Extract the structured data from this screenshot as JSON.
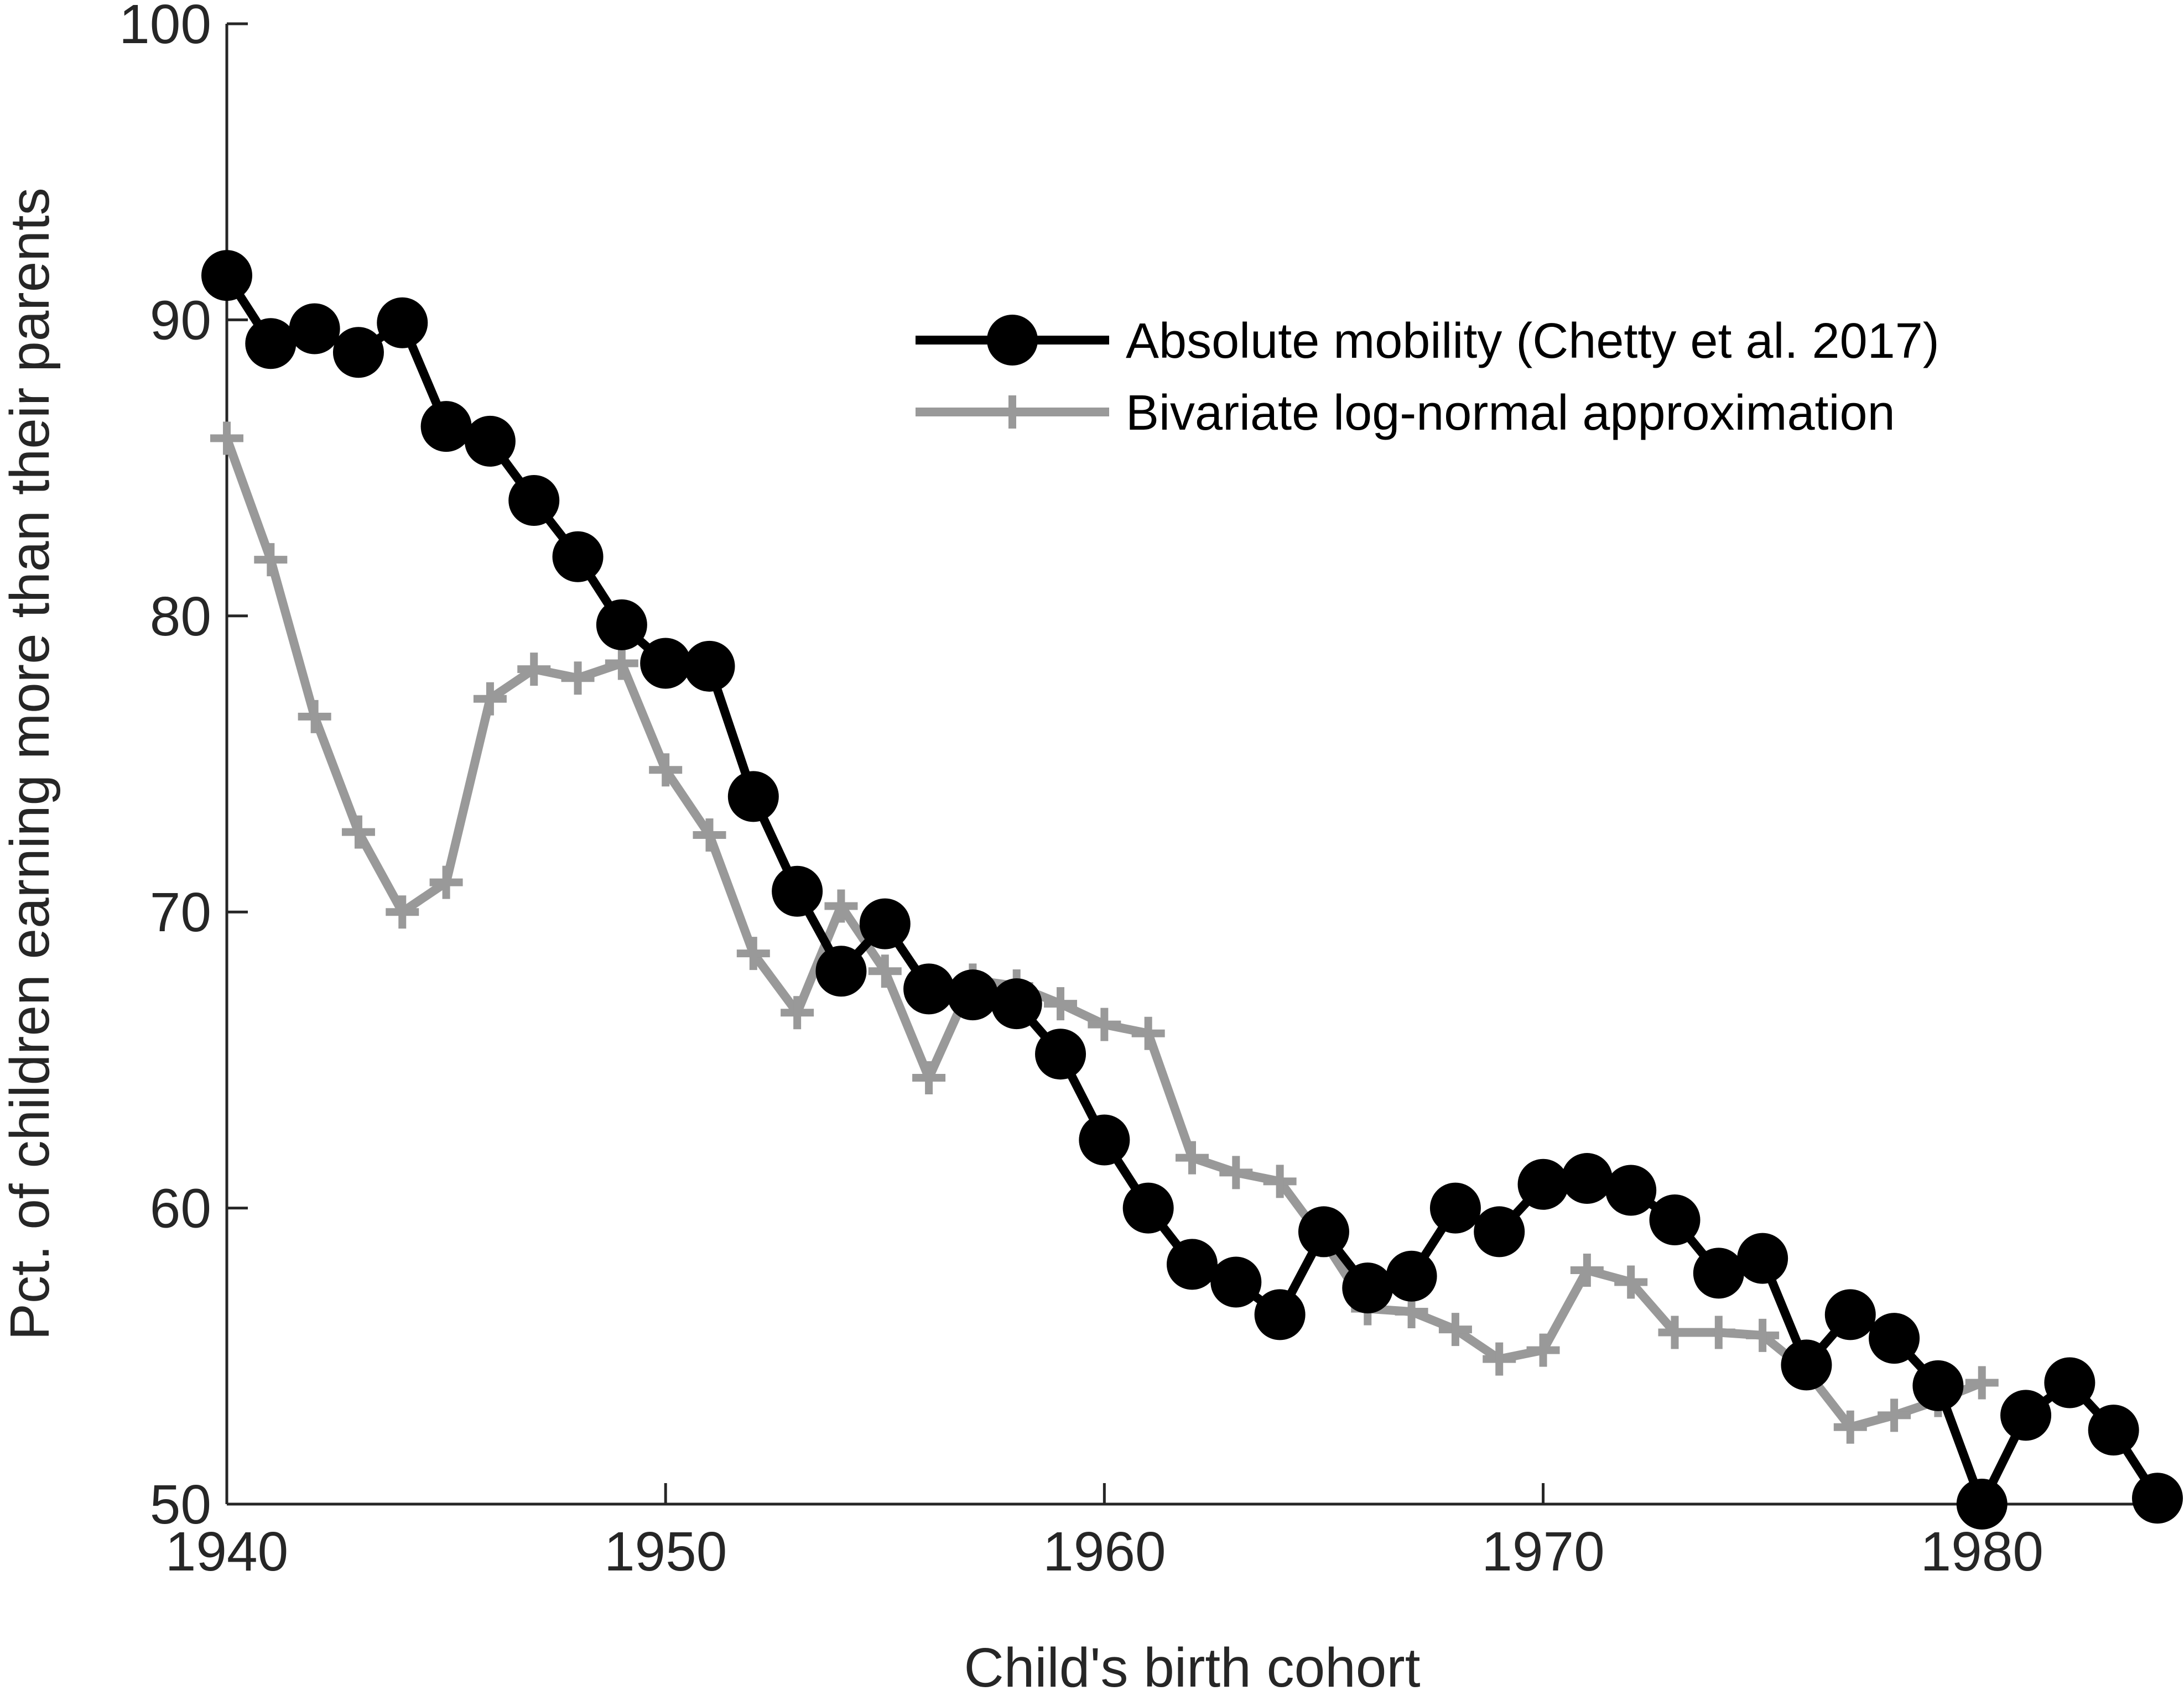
{
  "chart_data": {
    "type": "line",
    "title": "",
    "xlabel": "Child's birth cohort",
    "ylabel": "Pct. of children earning more than their parents",
    "xlim": [
      1940,
      1984
    ],
    "ylim": [
      50,
      100
    ],
    "xticks": [
      1940,
      1950,
      1960,
      1970,
      1980
    ],
    "yticks": [
      50,
      60,
      70,
      80,
      90,
      100
    ],
    "grid": false,
    "legend_position": "top-right",
    "series": [
      {
        "name": "Absolute mobility (Chetty et al. 2017)",
        "color": "#000000",
        "marker": "circle",
        "x": [
          1940,
          1941,
          1942,
          1943,
          1944,
          1945,
          1946,
          1947,
          1948,
          1949,
          1950,
          1951,
          1952,
          1953,
          1954,
          1955,
          1956,
          1957,
          1958,
          1959,
          1960,
          1961,
          1962,
          1963,
          1964,
          1965,
          1966,
          1967,
          1968,
          1969,
          1970,
          1971,
          1972,
          1973,
          1974,
          1975,
          1976,
          1977,
          1978,
          1979,
          1980,
          1981,
          1982,
          1983,
          1984
        ],
        "y": [
          91.5,
          89.2,
          89.7,
          88.9,
          89.9,
          86.4,
          85.9,
          83.9,
          82.0,
          79.7,
          78.4,
          78.3,
          73.9,
          70.7,
          68.0,
          69.6,
          67.4,
          67.2,
          66.9,
          65.2,
          62.3,
          60.0,
          58.1,
          57.5,
          56.4,
          59.2,
          57.3,
          57.7,
          60.0,
          59.2,
          60.8,
          61.0,
          60.6,
          59.6,
          57.8,
          58.3,
          54.7,
          56.4,
          55.6,
          54.0,
          50.0,
          53.0,
          54.1,
          52.5,
          50.2
        ]
      },
      {
        "name": "Bivariate log-normal approximation",
        "color": "#999999",
        "marker": "plus",
        "x": [
          1940,
          1941,
          1942,
          1943,
          1944,
          1945,
          1946,
          1947,
          1948,
          1949,
          1950,
          1951,
          1952,
          1953,
          1954,
          1955,
          1956,
          1957,
          1958,
          1959,
          1960,
          1961,
          1962,
          1963,
          1964,
          1965,
          1966,
          1967,
          1968,
          1969,
          1970,
          1971,
          1972,
          1973,
          1974,
          1975,
          1976,
          1977,
          1978,
          1979,
          1980
        ],
        "y": [
          86.0,
          81.9,
          76.6,
          72.7,
          70.0,
          71.0,
          77.2,
          78.2,
          77.9,
          78.4,
          74.8,
          72.6,
          68.6,
          66.6,
          70.2,
          68.0,
          64.4,
          67.7,
          67.5,
          66.9,
          66.2,
          65.9,
          61.7,
          61.2,
          60.9,
          58.9,
          56.6,
          56.5,
          55.9,
          54.9,
          55.2,
          57.9,
          57.5,
          55.8,
          55.8,
          55.7,
          54.5,
          52.6,
          53.0,
          53.5,
          54.1
        ]
      }
    ]
  }
}
